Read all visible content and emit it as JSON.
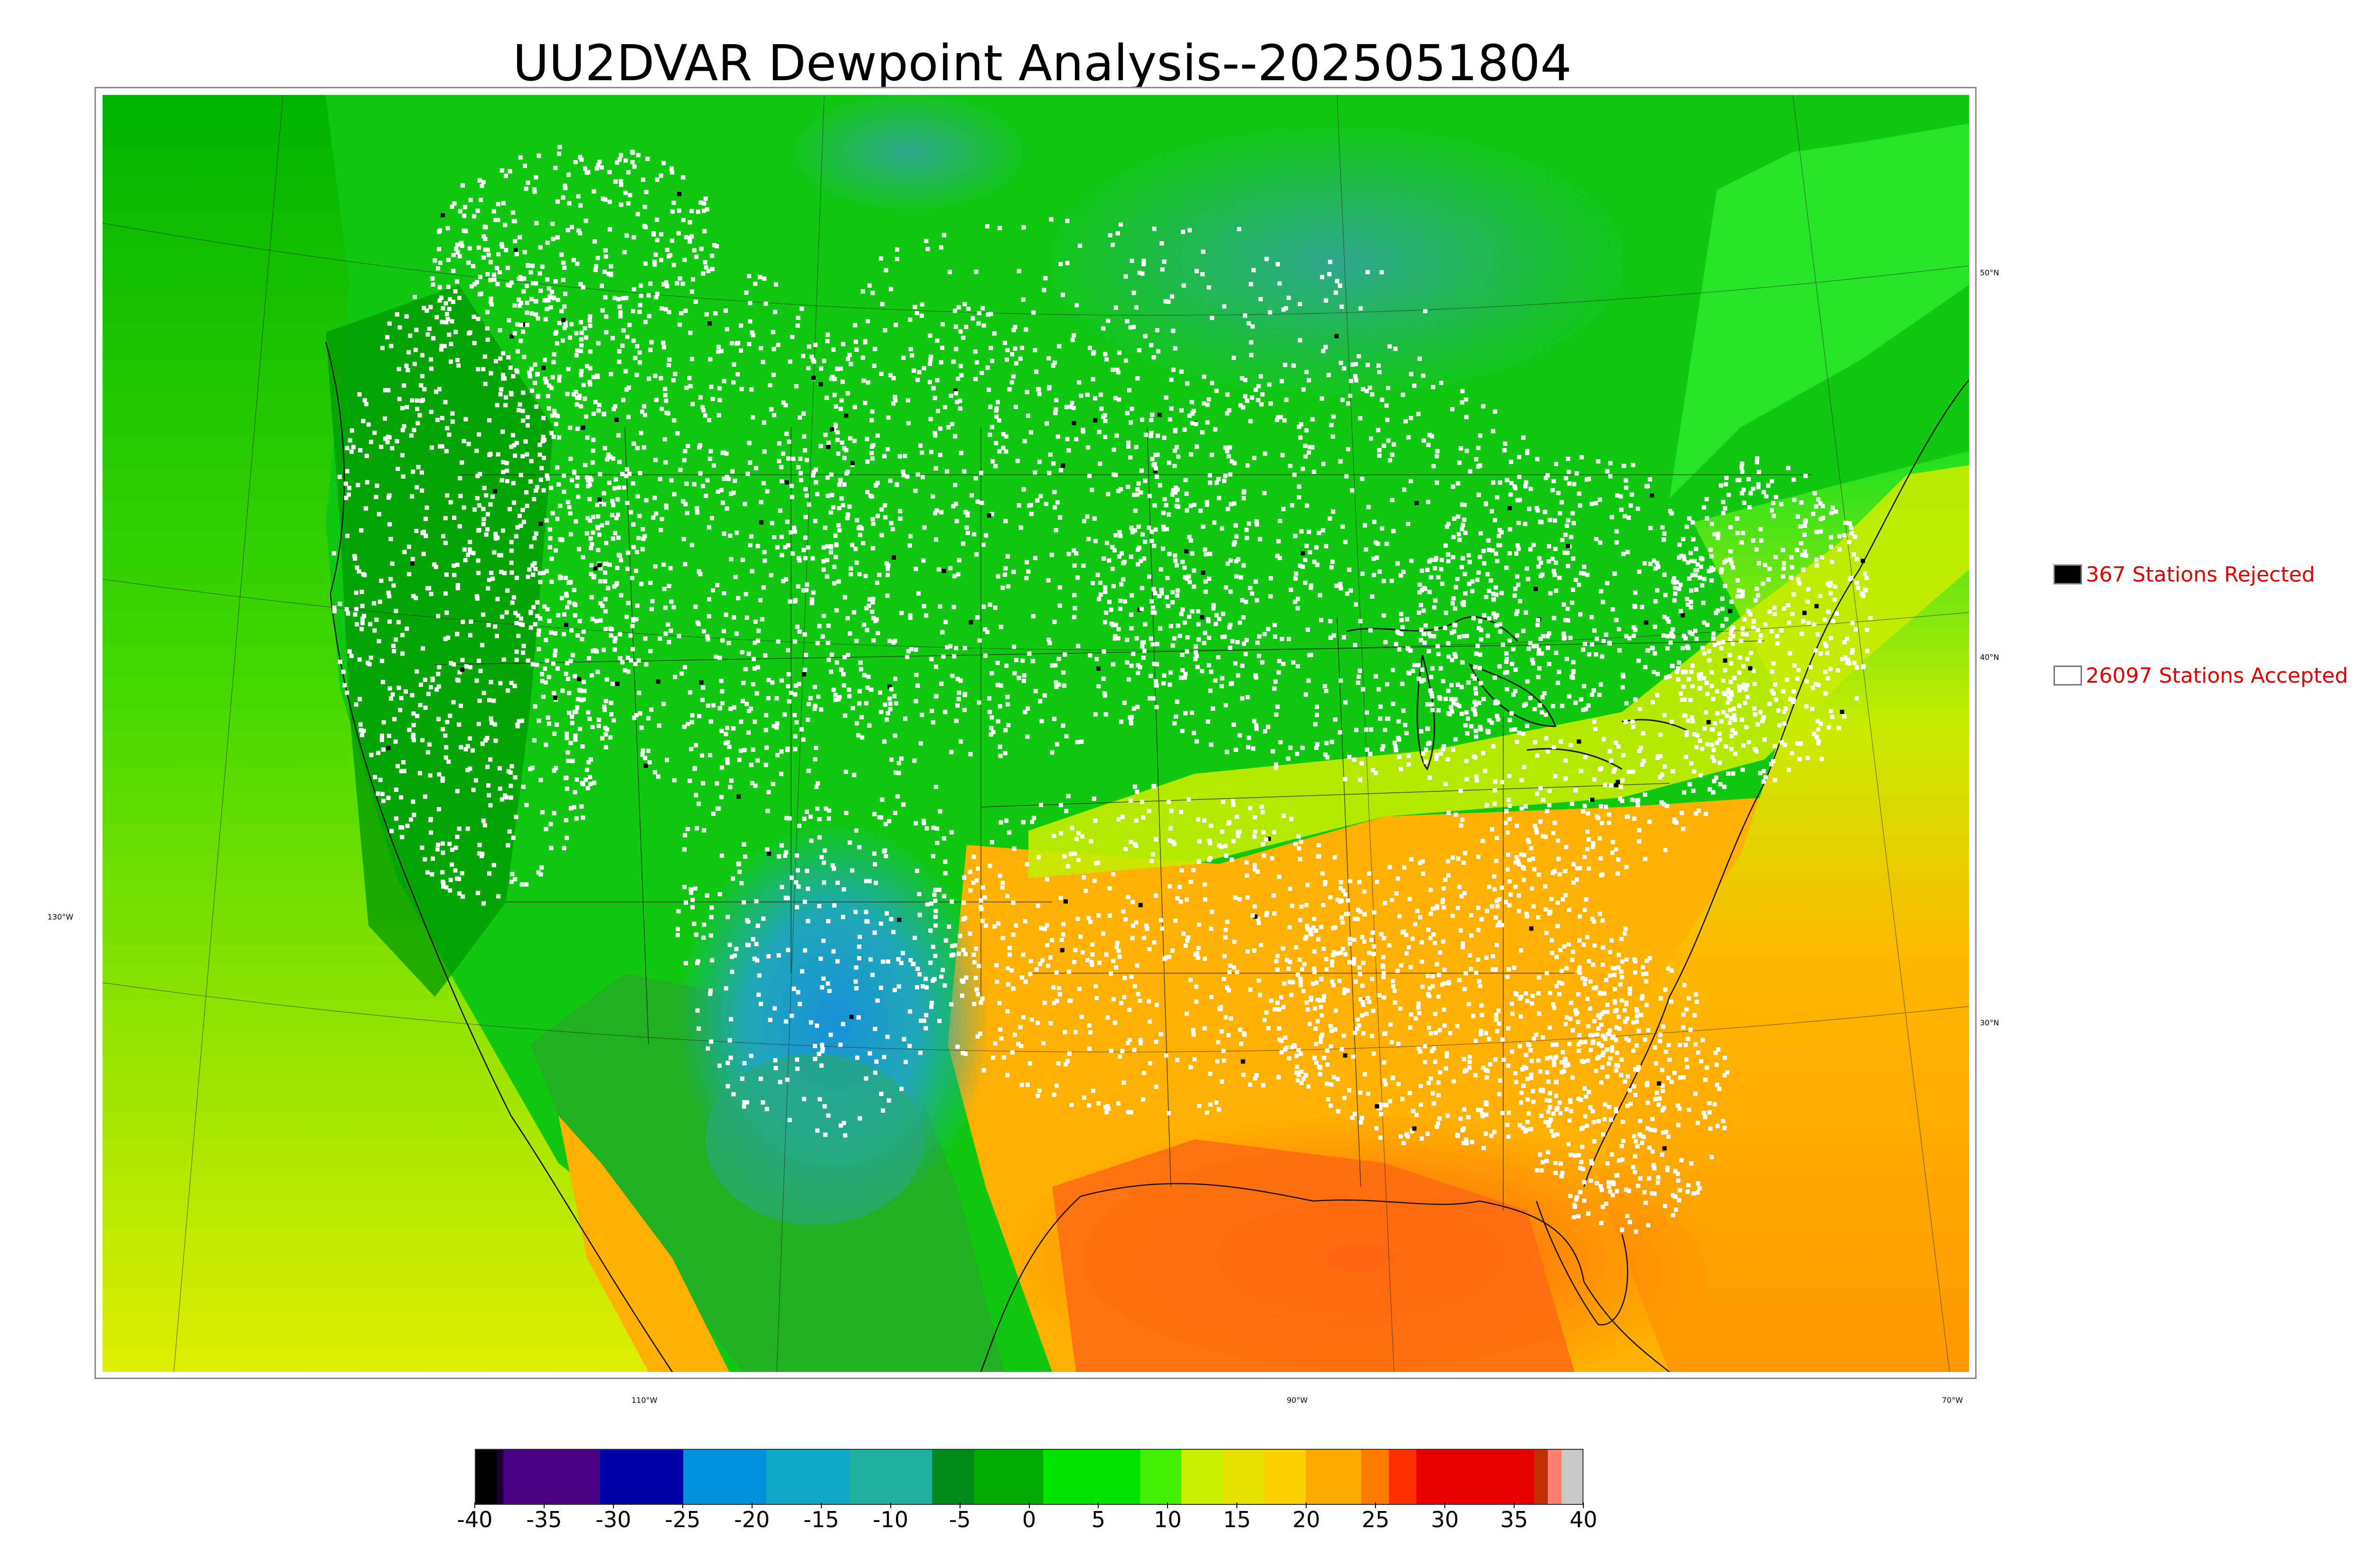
{
  "title": "UU2DVAR Dewpoint Analysis--2025051804",
  "legend": {
    "rejected": {
      "label": "367 Stations Rejected",
      "swatch_color": "#000000"
    },
    "accepted": {
      "label": "26097 Stations Accepted",
      "swatch_color": "#ffffff"
    },
    "text_color": "#e00000"
  },
  "map": {
    "lat_labels": [
      "50°N",
      "40°N",
      "30°N"
    ],
    "lon_labels": [
      "130°W",
      "110°W",
      "90°W",
      "70°W"
    ],
    "palette": {
      "ocean_warm": "#ff7a1a",
      "ocean_mild": "#ffb000",
      "pacific": "#d4ee00",
      "land_green": "#10c810",
      "land_dark": "#009a00",
      "canada_bright": "#22ee22",
      "dry_teal": "#2aa87a",
      "dry_blue": "#1a90d0",
      "station_accepted": "#ffffff",
      "station_rejected": "#000000"
    }
  },
  "colorbar": {
    "tick_labels": [
      "-40",
      "-35",
      "-30",
      "-25",
      "-20",
      "-15",
      "-10",
      "-5",
      "0",
      "5",
      "10",
      "15",
      "20",
      "25",
      "30",
      "35",
      "40"
    ],
    "vmin": -40,
    "vmax": 40,
    "segments": [
      {
        "from": -40,
        "to": -38.5,
        "color": "#000000"
      },
      {
        "from": -38.5,
        "to": -38,
        "color": "#1a0030"
      },
      {
        "from": -38,
        "to": -31,
        "color": "#4a0080"
      },
      {
        "from": -31,
        "to": -25,
        "color": "#0000a8"
      },
      {
        "from": -25,
        "to": -19,
        "color": "#0090dc"
      },
      {
        "from": -19,
        "to": -13,
        "color": "#10a8c8"
      },
      {
        "from": -13,
        "to": -7,
        "color": "#20b0a0"
      },
      {
        "from": -7,
        "to": -4,
        "color": "#008a1a"
      },
      {
        "from": -4,
        "to": 1,
        "color": "#00aa00"
      },
      {
        "from": 1,
        "to": 8,
        "color": "#00e400"
      },
      {
        "from": 8,
        "to": 11,
        "color": "#40f000"
      },
      {
        "from": 11,
        "to": 14,
        "color": "#c8f000"
      },
      {
        "from": 14,
        "to": 17,
        "color": "#e8e000"
      },
      {
        "from": 17,
        "to": 20,
        "color": "#ffd000"
      },
      {
        "from": 20,
        "to": 24,
        "color": "#ffaa00"
      },
      {
        "from": 24,
        "to": 26,
        "color": "#ff7a00"
      },
      {
        "from": 26,
        "to": 28,
        "color": "#ff3000"
      },
      {
        "from": 28,
        "to": 36.5,
        "color": "#e80000"
      },
      {
        "from": 36.5,
        "to": 37.5,
        "color": "#c03000"
      },
      {
        "from": 37.5,
        "to": 38.5,
        "color": "#ff8070"
      },
      {
        "from": 38.5,
        "to": 40,
        "color": "#c8c8c8"
      }
    ]
  }
}
